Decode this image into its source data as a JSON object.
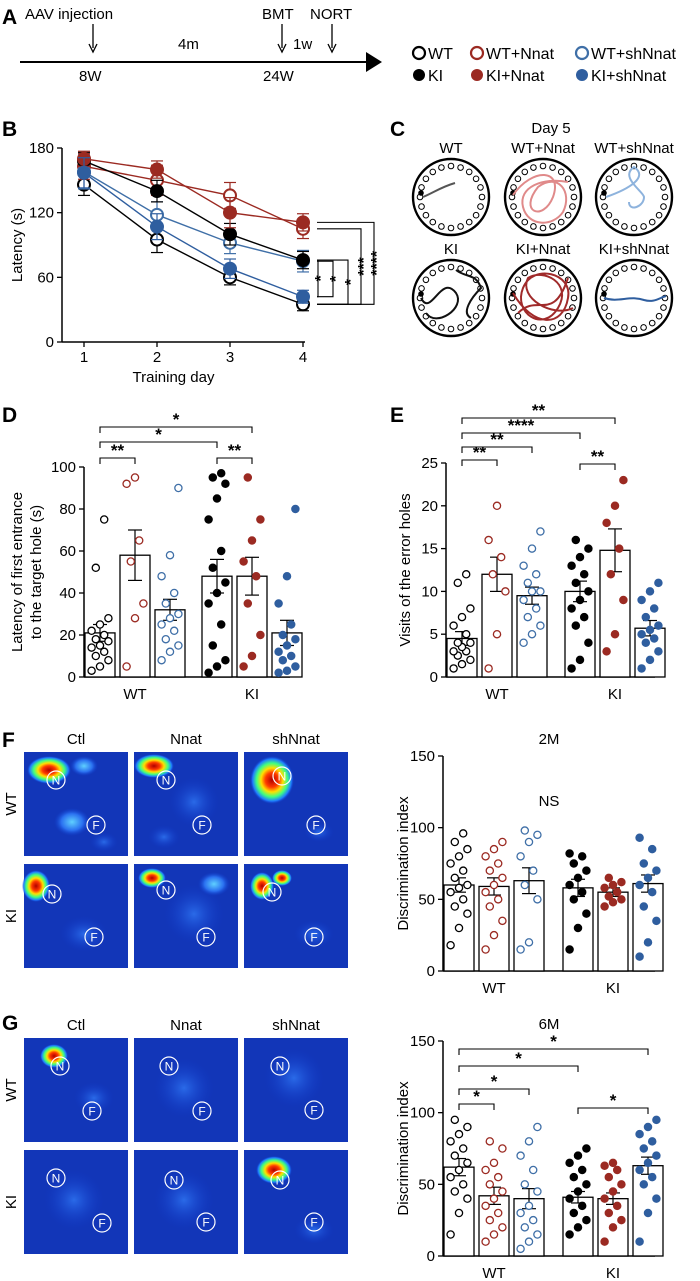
{
  "colors": {
    "wt": "#000000",
    "wt_nnat": "#9b2a22",
    "wt_shnnat": "#3f6fa7",
    "ki": "#000000",
    "ki_nnat": "#9b2a22",
    "ki_shnnat": "#2f5e9f"
  },
  "panel_a": {
    "letter": "A",
    "events": [
      {
        "label": "AAV injection"
      },
      {
        "label": "BMT"
      },
      {
        "label": "NORT"
      }
    ],
    "ages": [
      "8W",
      "24W"
    ],
    "intervals": [
      "4m",
      "1w"
    ],
    "legend": [
      "WT",
      "WT+Nnat",
      "WT+shNnat",
      "KI",
      "KI+Nnat",
      "KI+shNnat"
    ]
  },
  "panel_b": {
    "letter": "B"
  },
  "panel_c": {
    "letter": "C",
    "title": "Day 5",
    "mazes": [
      {
        "label": "WT"
      },
      {
        "label": "WT+Nnat"
      },
      {
        "label": "WT+shNnat"
      },
      {
        "label": "KI"
      },
      {
        "label": "KI+Nnat"
      },
      {
        "label": "KI+shNnat"
      }
    ]
  },
  "panel_d": {
    "letter": "D"
  },
  "panel_e": {
    "letter": "E"
  },
  "panel_f": {
    "letter": "F",
    "cols": [
      "Ctl",
      "Nnat",
      "shNnat"
    ],
    "rows": [
      "WT",
      "KI"
    ],
    "novel": "N",
    "familiar": "F"
  },
  "panel_g": {
    "letter": "G",
    "cols": [
      "Ctl",
      "Nnat",
      "shNnat"
    ],
    "rows": [
      "WT",
      "KI"
    ],
    "novel": "N",
    "familiar": "F"
  },
  "chart_data": [
    {
      "id": "B",
      "type": "line",
      "xlabel": "Training day",
      "ylabel": "Latency (s)",
      "x": [
        1,
        2,
        3,
        4
      ],
      "xticks": [
        "1",
        "2",
        "3",
        "4"
      ],
      "ylim": [
        0,
        180
      ],
      "yticks": [
        0,
        60,
        120,
        180
      ],
      "series": [
        {
          "name": "WT",
          "values": [
            146,
            95,
            60,
            35
          ],
          "err": [
            10,
            12,
            7,
            6
          ],
          "filled": false,
          "color": "#000000"
        },
        {
          "name": "WT+Nnat",
          "values": [
            163,
            150,
            136,
            105
          ],
          "err": [
            12,
            14,
            12,
            9
          ],
          "filled": false,
          "color": "#9b2a22"
        },
        {
          "name": "WT+shNnat",
          "values": [
            158,
            118,
            92,
            75
          ],
          "err": [
            16,
            12,
            10,
            10
          ],
          "filled": false,
          "color": "#3f6fa7"
        },
        {
          "name": "KI",
          "values": [
            168,
            140,
            100,
            76
          ],
          "err": [
            8,
            10,
            10,
            8
          ],
          "filled": true,
          "color": "#000000"
        },
        {
          "name": "KI+Nnat",
          "values": [
            170,
            160,
            120,
            111
          ],
          "err": [
            7,
            8,
            14,
            8
          ],
          "filled": true,
          "color": "#9b2a22"
        },
        {
          "name": "KI+shNnat",
          "values": [
            157,
            107,
            68,
            42
          ],
          "err": [
            14,
            12,
            9,
            6
          ],
          "filled": true,
          "color": "#2f5e9f"
        }
      ],
      "significance": [
        "*",
        "*",
        "*",
        "***",
        "****"
      ]
    },
    {
      "id": "D",
      "type": "bar",
      "ylabel": "Latency of first entrance to the target hole (s)",
      "ylim": [
        0,
        100
      ],
      "yticks": [
        0,
        20,
        40,
        60,
        80,
        100
      ],
      "categories": [
        "WT",
        "KI"
      ],
      "series": [
        {
          "name": "WT",
          "mean": 21,
          "err": 4,
          "points": [
            3,
            5,
            8,
            10,
            12,
            14,
            15,
            17,
            18,
            20,
            22,
            25,
            28,
            52,
            75
          ]
        },
        {
          "name": "WT+Nnat",
          "mean": 58,
          "err": 12,
          "points": [
            5,
            28,
            35,
            55,
            65,
            92,
            95
          ]
        },
        {
          "name": "WT+shNnat",
          "mean": 32,
          "err": 5,
          "points": [
            8,
            12,
            15,
            18,
            22,
            25,
            28,
            30,
            35,
            40,
            48,
            58,
            90
          ]
        },
        {
          "name": "KI",
          "mean": 48,
          "err": 8,
          "points": [
            2,
            5,
            8,
            15,
            25,
            35,
            40,
            45,
            52,
            60,
            75,
            85,
            92,
            95,
            97
          ]
        },
        {
          "name": "KI+Nnat",
          "mean": 48,
          "err": 9,
          "points": [
            5,
            10,
            20,
            35,
            48,
            55,
            65,
            75,
            95
          ]
        },
        {
          "name": "KI+shNnat",
          "mean": 21,
          "err": 6,
          "points": [
            2,
            3,
            5,
            8,
            10,
            12,
            15,
            18,
            20,
            25,
            35,
            48,
            80
          ]
        }
      ],
      "significance": [
        "**",
        "**",
        "*",
        "*"
      ]
    },
    {
      "id": "E",
      "type": "bar",
      "ylabel": "Visits of the error holes",
      "ylim": [
        0,
        25
      ],
      "yticks": [
        0,
        5,
        10,
        15,
        20,
        25
      ],
      "categories": [
        "WT",
        "KI"
      ],
      "series": [
        {
          "name": "WT",
          "mean": 4.5,
          "err": 0.8,
          "points": [
            1,
            1.5,
            2,
            2.5,
            3,
            3,
            3.5,
            4,
            4,
            5,
            6,
            7,
            8,
            11,
            12
          ]
        },
        {
          "name": "WT+Nnat",
          "mean": 12,
          "err": 2,
          "points": [
            1,
            5,
            10,
            12,
            14,
            16,
            20
          ]
        },
        {
          "name": "WT+shNnat",
          "mean": 9.5,
          "err": 1,
          "points": [
            4,
            5,
            6,
            7,
            8,
            9,
            10,
            10,
            11,
            12,
            13,
            15,
            17
          ]
        },
        {
          "name": "KI",
          "mean": 10,
          "err": 1.2,
          "points": [
            1,
            2,
            4,
            6,
            7,
            8,
            9,
            10,
            11,
            12,
            13,
            14,
            15,
            16
          ]
        },
        {
          "name": "KI+Nnat",
          "mean": 14.8,
          "err": 2.5,
          "points": [
            3,
            5,
            9,
            12,
            15,
            18,
            20,
            23
          ]
        },
        {
          "name": "KI+shNnat",
          "mean": 5.7,
          "err": 0.9,
          "points": [
            1,
            2,
            3,
            4,
            4.5,
            5,
            5.5,
            6,
            7,
            8,
            9,
            10,
            11
          ]
        }
      ],
      "significance": [
        "**",
        "**",
        "**",
        "****",
        "**"
      ]
    },
    {
      "id": "F",
      "type": "bar",
      "title": "2M",
      "ylabel": "Discrimination index",
      "ylim": [
        0,
        150
      ],
      "yticks": [
        0,
        50,
        100,
        150
      ],
      "categories": [
        "WT",
        "KI"
      ],
      "annotation": "NS",
      "series": [
        {
          "name": "WT",
          "mean": 60,
          "err": 5,
          "points": [
            18,
            30,
            40,
            45,
            50,
            55,
            58,
            60,
            65,
            70,
            75,
            80,
            85,
            90,
            96
          ]
        },
        {
          "name": "WT+Nnat",
          "mean": 59,
          "err": 6,
          "points": [
            15,
            25,
            35,
            45,
            50,
            55,
            60,
            65,
            70,
            75,
            80,
            85,
            90
          ]
        },
        {
          "name": "WT+shNnat",
          "mean": 63,
          "err": 9,
          "points": [
            15,
            20,
            50,
            60,
            70,
            80,
            90,
            95,
            98
          ]
        },
        {
          "name": "KI",
          "mean": 58,
          "err": 6,
          "points": [
            15,
            30,
            40,
            50,
            55,
            60,
            65,
            70,
            75,
            80,
            82
          ]
        },
        {
          "name": "KI+Nnat",
          "mean": 55,
          "err": 3,
          "points": [
            45,
            48,
            50,
            52,
            55,
            58,
            60,
            62,
            65
          ]
        },
        {
          "name": "KI+shNnat",
          "mean": 61,
          "err": 6,
          "points": [
            10,
            20,
            35,
            45,
            55,
            60,
            65,
            70,
            75,
            85,
            93
          ]
        }
      ]
    },
    {
      "id": "G",
      "type": "bar",
      "title": "6M",
      "ylabel": "Discrimination index",
      "ylim": [
        0,
        150
      ],
      "yticks": [
        0,
        50,
        100,
        150
      ],
      "categories": [
        "WT",
        "KI"
      ],
      "series": [
        {
          "name": "WT",
          "mean": 62,
          "err": 6,
          "points": [
            15,
            30,
            40,
            45,
            50,
            55,
            60,
            65,
            70,
            75,
            80,
            85,
            90,
            95
          ]
        },
        {
          "name": "WT+Nnat",
          "mean": 42,
          "err": 6,
          "points": [
            10,
            15,
            20,
            25,
            30,
            35,
            40,
            45,
            50,
            55,
            60,
            65,
            75,
            80
          ]
        },
        {
          "name": "WT+shNnat",
          "mean": 40,
          "err": 7,
          "points": [
            5,
            10,
            15,
            20,
            25,
            30,
            35,
            45,
            50,
            60,
            70,
            80,
            90
          ]
        },
        {
          "name": "KI",
          "mean": 41,
          "err": 4,
          "points": [
            15,
            20,
            25,
            30,
            35,
            40,
            45,
            50,
            55,
            60,
            65,
            70,
            75
          ]
        },
        {
          "name": "KI+Nnat",
          "mean": 40,
          "err": 4,
          "points": [
            10,
            20,
            25,
            30,
            35,
            40,
            45,
            50,
            55,
            60,
            63,
            65
          ]
        },
        {
          "name": "KI+shNnat",
          "mean": 63,
          "err": 6,
          "points": [
            10,
            30,
            40,
            50,
            55,
            60,
            65,
            70,
            75,
            80,
            85,
            90,
            95
          ]
        }
      ],
      "significance": [
        "*",
        "*",
        "*",
        "*",
        "*"
      ]
    }
  ]
}
